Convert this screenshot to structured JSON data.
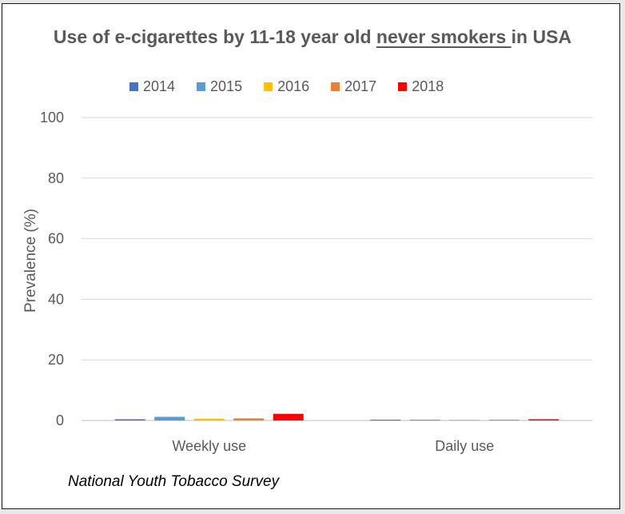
{
  "chart_data": {
    "type": "bar",
    "title": {
      "prefix": "Use of e-cigarettes by 11-18 year old ",
      "emphasis": "never smokers ",
      "suffix": "in USA"
    },
    "categories": [
      "Weekly use",
      "Daily use"
    ],
    "series": [
      {
        "name": "2014",
        "color": "#4472c4",
        "values": [
          0.4,
          0.1
        ]
      },
      {
        "name": "2015",
        "color": "#5b9bd5",
        "values": [
          1.2,
          0.1
        ]
      },
      {
        "name": "2016",
        "color": "#ffc000",
        "values": [
          0.6,
          0.1
        ]
      },
      {
        "name": "2017",
        "color": "#ed7d31",
        "values": [
          0.7,
          0.1
        ]
      },
      {
        "name": "2018",
        "color": "#ff0000",
        "values": [
          2.2,
          0.4
        ]
      }
    ],
    "ylabel": "Prevalence (%)",
    "xlabel": "",
    "ylim": [
      0,
      100
    ],
    "yticks": [
      "0",
      "20",
      "40",
      "60",
      "80",
      "100"
    ],
    "grid": true,
    "legend_position": "top"
  },
  "footnote": "National Youth Tobacco Survey"
}
